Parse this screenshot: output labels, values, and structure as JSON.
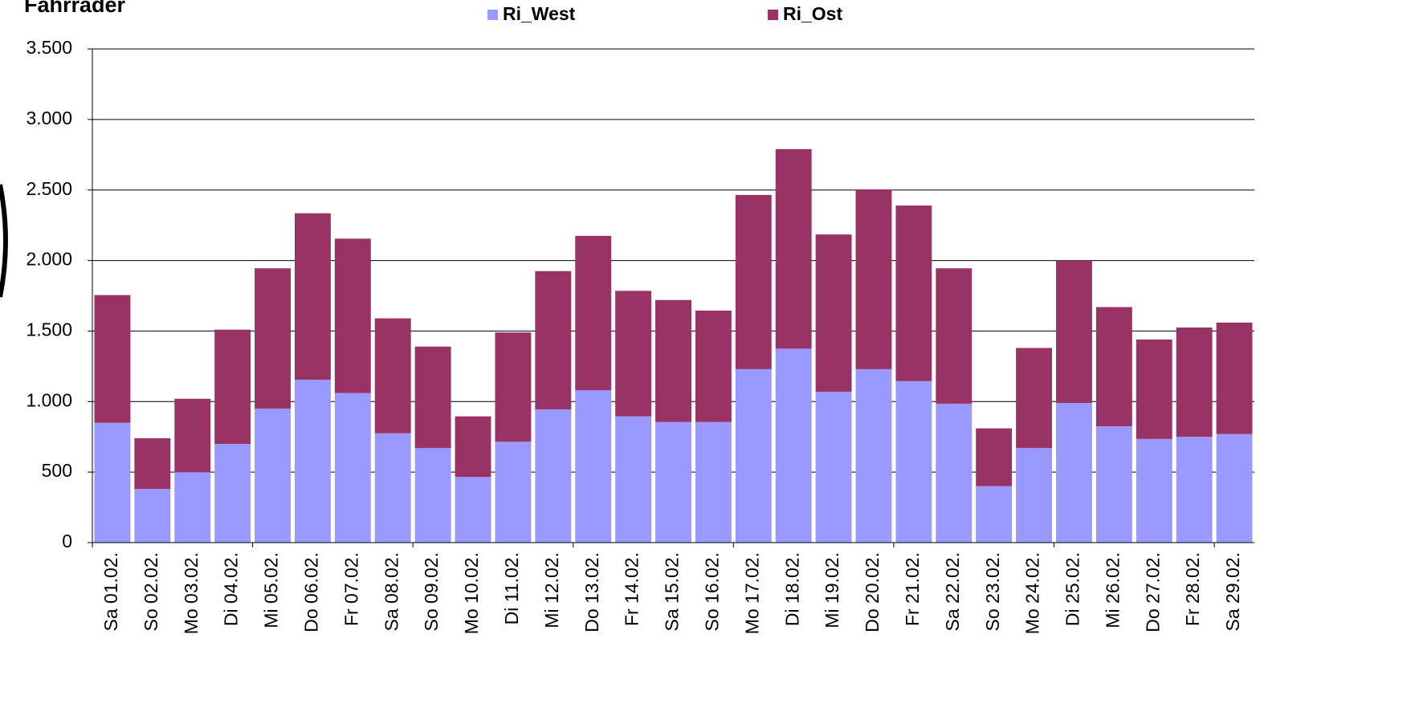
{
  "chart_data": {
    "type": "stacked_bar",
    "title": "Fahrräder",
    "categories": [
      "Sa 01.02.",
      "So 02.02.",
      "Mo 03.02.",
      "Di 04.02.",
      "Mi 05.02.",
      "Do 06.02.",
      "Fr 07.02.",
      "Sa 08.02.",
      "So 09.02.",
      "Mo 10.02.",
      "Di 11.02.",
      "Mi 12.02.",
      "Do 13.02.",
      "Fr 14.02.",
      "Sa 15.02.",
      "So 16.02.",
      "Mo 17.02.",
      "Di 18.02.",
      "Mi 19.02.",
      "Do 20.02.",
      "Fr 21.02.",
      "Sa 22.02.",
      "So 23.02.",
      "Mo 24.02.",
      "Di 25.02.",
      "Mi 26.02.",
      "Do 27.02.",
      "Fr 28.02.",
      "Sa 29.02."
    ],
    "series": [
      {
        "name": "Ri_West",
        "color": "#9999ff",
        "values": [
          850,
          380,
          500,
          700,
          950,
          1155,
          1060,
          775,
          670,
          465,
          715,
          945,
          1080,
          895,
          855,
          855,
          1230,
          1375,
          1070,
          1230,
          1145,
          985,
          400,
          670,
          990,
          825,
          735,
          750,
          770
        ]
      },
      {
        "name": "Ri_Ost",
        "color": "#993366",
        "values": [
          905,
          360,
          520,
          810,
          995,
          1180,
          1095,
          815,
          720,
          430,
          775,
          980,
          1095,
          890,
          865,
          790,
          1235,
          1415,
          1115,
          1275,
          1245,
          960,
          410,
          710,
          1010,
          845,
          705,
          775,
          790
        ]
      }
    ],
    "ylim": [
      0,
      3500
    ],
    "yticks": [
      0,
      500,
      {
        "value": 1000,
        "label": "1.000"
      },
      {
        "value": 1500,
        "label": "1.500"
      },
      {
        "value": 2000,
        "label": "2.000"
      },
      {
        "value": 2500,
        "label": "2.500"
      },
      {
        "value": 3000,
        "label": "3.000"
      },
      {
        "value": 3500,
        "label": "3.500"
      }
    ],
    "grid": true
  }
}
